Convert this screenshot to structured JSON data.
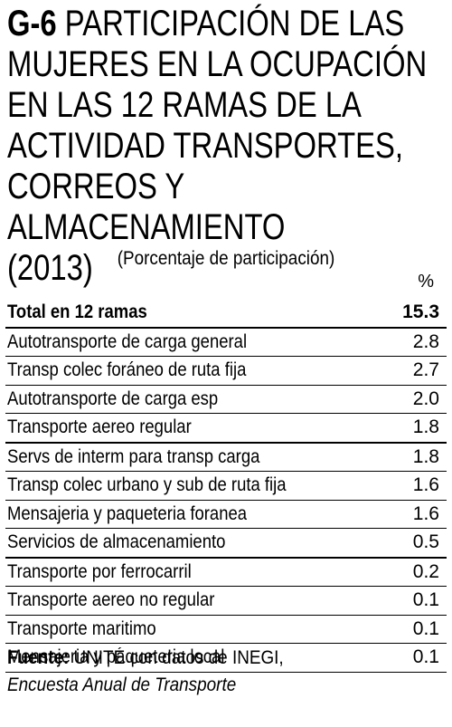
{
  "title": {
    "code": "G-6",
    "lines": [
      "PARTICIPACIÓN DE LAS",
      "MUJERES EN LA OCUPACIÓN",
      "EN LAS 12 RAMAS DE LA",
      "ACTIVIDAD TRANSPORTES,",
      "CORREOS Y ALMACENAMIENTO",
      "(2013)"
    ]
  },
  "subtitle": "(Porcentaje de participación)",
  "unit": "%",
  "total": {
    "label": "Total en  12 ramas",
    "value": "15.3"
  },
  "source": {
    "label": "Fuente:",
    "text": "UNITÉ con datos de INEGI,",
    "publication": "Encuesta Anual de Transporte"
  },
  "chart_data": {
    "type": "table",
    "title": "PARTICIPACIÓN DE LAS MUJERES EN LA OCUPACIÓN EN LAS 12 RAMAS DE LA ACTIVIDAD TRANSPORTES, CORREOS Y ALMACENAMIENTO (2013)",
    "columns": [
      "",
      "%"
    ],
    "categories": [
      "Autotransporte de carga general",
      "Transp colec foráneo de ruta fija",
      "Autotransporte de carga esp",
      "Transporte aereo regular",
      "Servs de interm para transp carga",
      "Transp colec urbano y sub  de ruta fija",
      "Mensajeria y paqueteria foranea",
      "Servicios de almacenamiento",
      "Transporte por ferrocarril",
      "Transporte aereo no regular",
      "Transporte maritimo",
      "Mensajeria y paqueteria local"
    ],
    "values": [
      "2.8",
      "2.7",
      "2.0",
      "1.8",
      "1.8",
      "1.6",
      "1.6",
      "0.5",
      "0.2",
      "0.1",
      "0.1",
      "0.1"
    ]
  }
}
